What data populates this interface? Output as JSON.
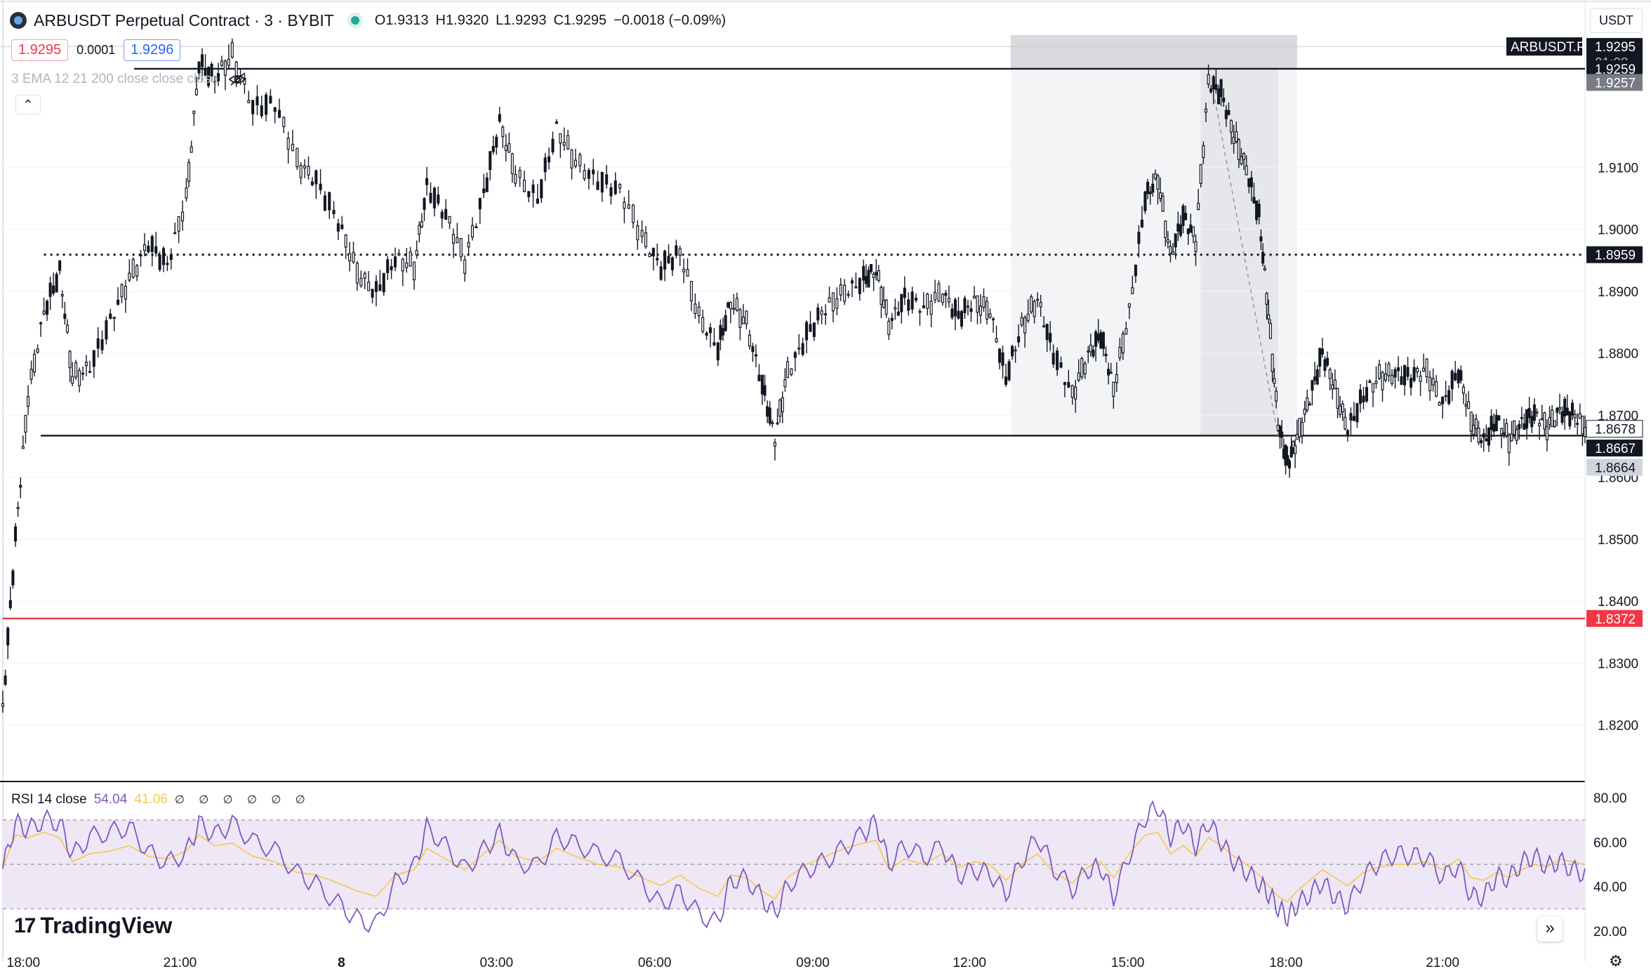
{
  "header": {
    "symbol": "ARBUSDT Perpetual Contract · 3 · BYBIT",
    "ohlc": {
      "o_label": "O",
      "o": "1.9313",
      "h_label": "H",
      "h": "1.9320",
      "l_label": "L",
      "l": "1.9293",
      "c_label": "C",
      "c": "1.9295",
      "change": "−0.0018 (−0.09%)"
    }
  },
  "quotes": {
    "sell": "1.9295",
    "spread": "0.0001",
    "buy": "1.9296"
  },
  "indicator": {
    "label": "3 EMA 12 21 200 close close close"
  },
  "currency": "USDT",
  "rsi_legend": {
    "name": "RSI 14 close",
    "value": "54.04",
    "ma": "41.06",
    "icons": "∅ ∅ ∅ ∅ ∅ ∅"
  },
  "branding": {
    "name": "TradingView"
  },
  "colors": {
    "candle": "#131722",
    "grid": "#f0f3fa",
    "red_line": "#f23645",
    "rsi": "#7e57c2",
    "rsi_ma": "#f7c948",
    "rsi_band": "#ede7f6"
  },
  "chart_data": {
    "type": "candlestick",
    "price_axis": {
      "ticks": [
        "1.9100",
        "1.9000",
        "1.8900",
        "1.8800",
        "1.8700",
        "1.8600",
        "1.8500",
        "1.8400",
        "1.8300",
        "1.8200"
      ],
      "range": [
        1.811,
        1.937
      ]
    },
    "time_axis": {
      "ticks": [
        "18:00",
        "21:00",
        "8",
        "03:00",
        "06:00",
        "09:00",
        "12:00",
        "15:00",
        "18:00",
        "21:00"
      ]
    },
    "price_labels": [
      {
        "text": "1.9295",
        "price": 1.9295,
        "style": "dark"
      },
      {
        "text": "01:08",
        "price": 1.927,
        "style": "dark-sub"
      },
      {
        "text": "1.9259",
        "price": 1.9259,
        "style": "dark"
      },
      {
        "text": "1.9257",
        "price": 1.9237,
        "style": "gray"
      },
      {
        "text": "1.8959",
        "price": 1.8959,
        "style": "dark"
      },
      {
        "text": "1.8678",
        "price": 1.8678,
        "style": "outline"
      },
      {
        "text": "1.8667",
        "price": 1.8647,
        "style": "dark"
      },
      {
        "text": "1.8664",
        "price": 1.8616,
        "style": "light"
      },
      {
        "text": "1.8372",
        "price": 1.8372,
        "style": "red"
      }
    ],
    "symbol_tag": "ARBUSDT.P",
    "horizontal_lines": [
      {
        "price": 1.9259,
        "style": "solid",
        "from_x": 0.083
      },
      {
        "price": 1.8959,
        "style": "dotted",
        "from_x": 0.026
      },
      {
        "price": 1.8667,
        "style": "solid",
        "from_x": 0.024
      },
      {
        "price": 1.8372,
        "style": "red",
        "from_x": 0.0
      }
    ],
    "rsi_axis": {
      "ticks": [
        "80.00",
        "60.00",
        "40.00",
        "20.00"
      ],
      "band": [
        30,
        70
      ],
      "mid": 50
    },
    "series": [
      {
        "t": 0.0,
        "price": 1.823,
        "rsi": 48
      },
      {
        "t": 0.008,
        "price": 1.85,
        "rsi": 72
      },
      {
        "t": 0.016,
        "price": 1.873,
        "rsi": 70
      },
      {
        "t": 0.026,
        "price": 1.887,
        "rsi": 74
      },
      {
        "t": 0.036,
        "price": 1.893,
        "rsi": 70
      },
      {
        "t": 0.044,
        "price": 1.876,
        "rsi": 52
      },
      {
        "t": 0.055,
        "price": 1.878,
        "rsi": 58
      },
      {
        "t": 0.068,
        "price": 1.885,
        "rsi": 60
      },
      {
        "t": 0.08,
        "price": 1.892,
        "rsi": 64
      },
      {
        "t": 0.092,
        "price": 1.898,
        "rsi": 56
      },
      {
        "t": 0.104,
        "price": 1.894,
        "rsi": 54
      },
      {
        "t": 0.116,
        "price": 1.905,
        "rsi": 60
      },
      {
        "t": 0.124,
        "price": 1.927,
        "rsi": 72
      },
      {
        "t": 0.134,
        "price": 1.924,
        "rsi": 64
      },
      {
        "t": 0.145,
        "price": 1.928,
        "rsi": 66
      },
      {
        "t": 0.158,
        "price": 1.92,
        "rsi": 56
      },
      {
        "t": 0.172,
        "price": 1.92,
        "rsi": 52
      },
      {
        "t": 0.186,
        "price": 1.911,
        "rsi": 44
      },
      {
        "t": 0.198,
        "price": 1.908,
        "rsi": 42
      },
      {
        "t": 0.212,
        "price": 1.901,
        "rsi": 36
      },
      {
        "t": 0.224,
        "price": 1.893,
        "rsi": 30
      },
      {
        "t": 0.236,
        "price": 1.89,
        "rsi": 26
      },
      {
        "t": 0.248,
        "price": 1.895,
        "rsi": 42
      },
      {
        "t": 0.26,
        "price": 1.894,
        "rsi": 46
      },
      {
        "t": 0.268,
        "price": 1.907,
        "rsi": 62
      },
      {
        "t": 0.28,
        "price": 1.902,
        "rsi": 54
      },
      {
        "t": 0.292,
        "price": 1.895,
        "rsi": 46
      },
      {
        "t": 0.304,
        "price": 1.906,
        "rsi": 58
      },
      {
        "t": 0.314,
        "price": 1.917,
        "rsi": 68
      },
      {
        "t": 0.324,
        "price": 1.909,
        "rsi": 56
      },
      {
        "t": 0.338,
        "price": 1.905,
        "rsi": 52
      },
      {
        "t": 0.35,
        "price": 1.916,
        "rsi": 62
      },
      {
        "t": 0.362,
        "price": 1.911,
        "rsi": 56
      },
      {
        "t": 0.376,
        "price": 1.908,
        "rsi": 50
      },
      {
        "t": 0.39,
        "price": 1.906,
        "rsi": 48
      },
      {
        "t": 0.404,
        "price": 1.899,
        "rsi": 40
      },
      {
        "t": 0.416,
        "price": 1.894,
        "rsi": 34
      },
      {
        "t": 0.428,
        "price": 1.896,
        "rsi": 42
      },
      {
        "t": 0.44,
        "price": 1.886,
        "rsi": 32
      },
      {
        "t": 0.452,
        "price": 1.881,
        "rsi": 26
      },
      {
        "t": 0.46,
        "price": 1.888,
        "rsi": 42
      },
      {
        "t": 0.47,
        "price": 1.885,
        "rsi": 40
      },
      {
        "t": 0.48,
        "price": 1.875,
        "rsi": 30
      },
      {
        "t": 0.488,
        "price": 1.866,
        "rsi": 24
      },
      {
        "t": 0.496,
        "price": 1.877,
        "rsi": 40
      },
      {
        "t": 0.508,
        "price": 1.883,
        "rsi": 50
      },
      {
        "t": 0.52,
        "price": 1.887,
        "rsi": 56
      },
      {
        "t": 0.532,
        "price": 1.89,
        "rsi": 62
      },
      {
        "t": 0.544,
        "price": 1.892,
        "rsi": 66
      },
      {
        "t": 0.552,
        "price": 1.893,
        "rsi": 68
      },
      {
        "t": 0.56,
        "price": 1.885,
        "rsi": 46
      },
      {
        "t": 0.57,
        "price": 1.889,
        "rsi": 54
      },
      {
        "t": 0.582,
        "price": 1.887,
        "rsi": 50
      },
      {
        "t": 0.594,
        "price": 1.89,
        "rsi": 58
      },
      {
        "t": 0.604,
        "price": 1.886,
        "rsi": 48
      },
      {
        "t": 0.614,
        "price": 1.888,
        "rsi": 52
      },
      {
        "t": 0.624,
        "price": 1.887,
        "rsi": 50
      },
      {
        "t": 0.634,
        "price": 1.876,
        "rsi": 38
      },
      {
        "t": 0.644,
        "price": 1.884,
        "rsi": 50
      },
      {
        "t": 0.654,
        "price": 1.889,
        "rsi": 58
      },
      {
        "t": 0.664,
        "price": 1.88,
        "rsi": 44
      },
      {
        "t": 0.676,
        "price": 1.873,
        "rsi": 36
      },
      {
        "t": 0.686,
        "price": 1.88,
        "rsi": 48
      },
      {
        "t": 0.694,
        "price": 1.883,
        "rsi": 52
      },
      {
        "t": 0.702,
        "price": 1.874,
        "rsi": 40
      },
      {
        "t": 0.712,
        "price": 1.887,
        "rsi": 58
      },
      {
        "t": 0.722,
        "price": 1.905,
        "rsi": 72
      },
      {
        "t": 0.73,
        "price": 1.908,
        "rsi": 74
      },
      {
        "t": 0.738,
        "price": 1.896,
        "rsi": 58
      },
      {
        "t": 0.746,
        "price": 1.902,
        "rsi": 64
      },
      {
        "t": 0.754,
        "price": 1.898,
        "rsi": 56
      },
      {
        "t": 0.762,
        "price": 1.924,
        "rsi": 70
      },
      {
        "t": 0.77,
        "price": 1.922,
        "rsi": 64
      },
      {
        "t": 0.778,
        "price": 1.915,
        "rsi": 56
      },
      {
        "t": 0.786,
        "price": 1.91,
        "rsi": 50
      },
      {
        "t": 0.794,
        "price": 1.902,
        "rsi": 42
      },
      {
        "t": 0.8,
        "price": 1.886,
        "rsi": 34
      },
      {
        "t": 0.806,
        "price": 1.869,
        "rsi": 26
      },
      {
        "t": 0.812,
        "price": 1.862,
        "rsi": 22
      },
      {
        "t": 0.818,
        "price": 1.866,
        "rsi": 30
      },
      {
        "t": 0.826,
        "price": 1.873,
        "rsi": 38
      },
      {
        "t": 0.834,
        "price": 1.88,
        "rsi": 46
      },
      {
        "t": 0.842,
        "price": 1.874,
        "rsi": 40
      },
      {
        "t": 0.85,
        "price": 1.868,
        "rsi": 34
      },
      {
        "t": 0.86,
        "price": 1.873,
        "rsi": 44
      },
      {
        "t": 0.87,
        "price": 1.876,
        "rsi": 48
      },
      {
        "t": 0.88,
        "price": 1.877,
        "rsi": 50
      },
      {
        "t": 0.89,
        "price": 1.876,
        "rsi": 50
      },
      {
        "t": 0.9,
        "price": 1.877,
        "rsi": 52
      },
      {
        "t": 0.91,
        "price": 1.872,
        "rsi": 46
      },
      {
        "t": 0.92,
        "price": 1.877,
        "rsi": 54
      },
      {
        "t": 0.928,
        "price": 1.869,
        "rsi": 40
      },
      {
        "t": 0.936,
        "price": 1.866,
        "rsi": 38
      },
      {
        "t": 0.944,
        "price": 1.869,
        "rsi": 44
      },
      {
        "t": 0.952,
        "price": 1.866,
        "rsi": 40
      },
      {
        "t": 0.96,
        "price": 1.869,
        "rsi": 46
      },
      {
        "t": 0.968,
        "price": 1.87,
        "rsi": 50
      },
      {
        "t": 0.976,
        "price": 1.868,
        "rsi": 48
      },
      {
        "t": 0.984,
        "price": 1.871,
        "rsi": 54
      },
      {
        "t": 0.992,
        "price": 1.87,
        "rsi": 52
      },
      {
        "t": 1.0,
        "price": 1.868,
        "rsi": 50
      }
    ]
  }
}
